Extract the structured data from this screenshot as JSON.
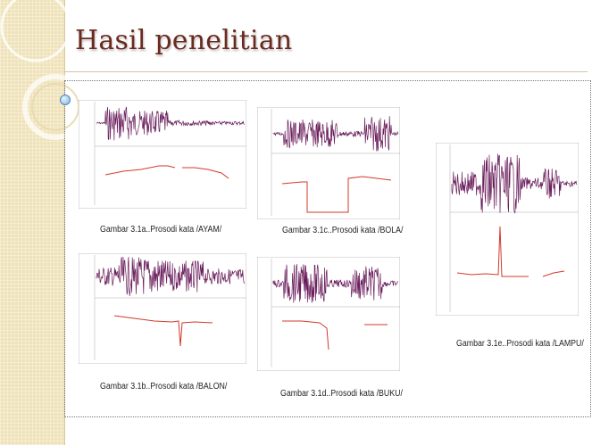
{
  "slide": {
    "title": "Hasil penelitian"
  },
  "figures": [
    {
      "id": "1a",
      "caption": "Gambar 3.1a..Prosodi kata /AYAM/"
    },
    {
      "id": "1b",
      "caption": "Gambar 3.1b..Prosodi kata /BALON/"
    },
    {
      "id": "1c",
      "caption": "Gambar 3.1c..Prosodi kata /BOLA/"
    },
    {
      "id": "1d",
      "caption": "Gambar 3.1d..Prosodi kata /BUKU/"
    },
    {
      "id": "1e",
      "caption": "Gambar 3.1e..Prosodi kata /LAMPU/"
    }
  ],
  "colors": {
    "waveform": "#6a1e5c",
    "pitch": "#d23a2a",
    "title": "#6b2a1f",
    "sidebar": "#efe2b8"
  }
}
